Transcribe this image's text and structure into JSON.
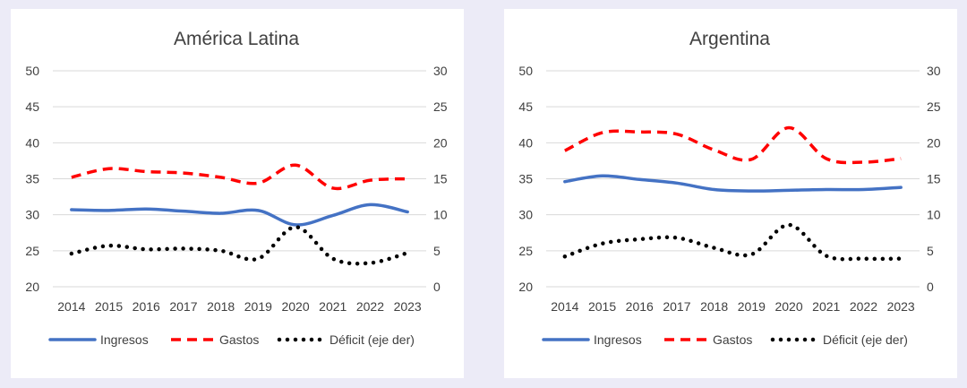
{
  "colors": {
    "background": "#ecebf7",
    "panel": "#ffffff",
    "grid": "#d9d9d9",
    "text": "#404040",
    "ingresos": "#4472c4",
    "gastos": "#ff0000",
    "deficit": "#000000"
  },
  "legend_labels": [
    "Ingresos",
    "Gastos",
    "Déficit (eje der)"
  ],
  "chart_data": [
    {
      "type": "line",
      "title": "América Latina",
      "categories": [
        "2014",
        "2015",
        "2016",
        "2017",
        "2018",
        "2019",
        "2020",
        "2021",
        "2022",
        "2023"
      ],
      "ylim": [
        20,
        50
      ],
      "yticks": [
        "20",
        "25",
        "30",
        "35",
        "40",
        "45",
        "50"
      ],
      "y2lim": [
        0,
        30
      ],
      "y2ticks": [
        "0",
        "5",
        "10",
        "15",
        "20",
        "25",
        "30"
      ],
      "grid": true,
      "legend_position": "bottom",
      "series": [
        {
          "name": "Ingresos",
          "axis": "left",
          "style": "solid",
          "values": [
            30.7,
            30.6,
            30.8,
            30.5,
            30.2,
            30.6,
            28.6,
            29.9,
            31.4,
            30.4
          ]
        },
        {
          "name": "Gastos",
          "axis": "left",
          "style": "dashed",
          "values": [
            35.2,
            36.4,
            36.0,
            35.8,
            35.2,
            34.4,
            36.9,
            33.7,
            34.8,
            35.0
          ]
        },
        {
          "name": "Déficit (eje der)",
          "axis": "right",
          "style": "dotted",
          "values": [
            4.6,
            5.7,
            5.2,
            5.3,
            5.0,
            3.9,
            8.3,
            3.9,
            3.3,
            4.7
          ]
        }
      ]
    },
    {
      "type": "line",
      "title": "Argentina",
      "categories": [
        "2014",
        "2015",
        "2016",
        "2017",
        "2018",
        "2019",
        "2020",
        "2021",
        "2022",
        "2023"
      ],
      "ylim": [
        20,
        50
      ],
      "yticks": [
        "20",
        "25",
        "30",
        "35",
        "40",
        "45",
        "50"
      ],
      "y2lim": [
        0,
        30
      ],
      "y2ticks": [
        "0",
        "5",
        "10",
        "15",
        "20",
        "25",
        "30"
      ],
      "grid": true,
      "legend_position": "bottom",
      "series": [
        {
          "name": "Ingresos",
          "axis": "left",
          "style": "solid",
          "values": [
            34.6,
            35.4,
            34.9,
            34.4,
            33.5,
            33.3,
            33.4,
            33.5,
            33.5,
            33.8
          ]
        },
        {
          "name": "Gastos",
          "axis": "left",
          "style": "dashed",
          "values": [
            38.9,
            41.4,
            41.5,
            41.2,
            39.0,
            37.7,
            42.1,
            37.8,
            37.3,
            37.8
          ]
        },
        {
          "name": "Déficit (eje der)",
          "axis": "right",
          "style": "dotted",
          "values": [
            4.2,
            6.0,
            6.6,
            6.8,
            5.4,
            4.5,
            8.6,
            4.3,
            3.9,
            3.9
          ]
        }
      ]
    }
  ]
}
